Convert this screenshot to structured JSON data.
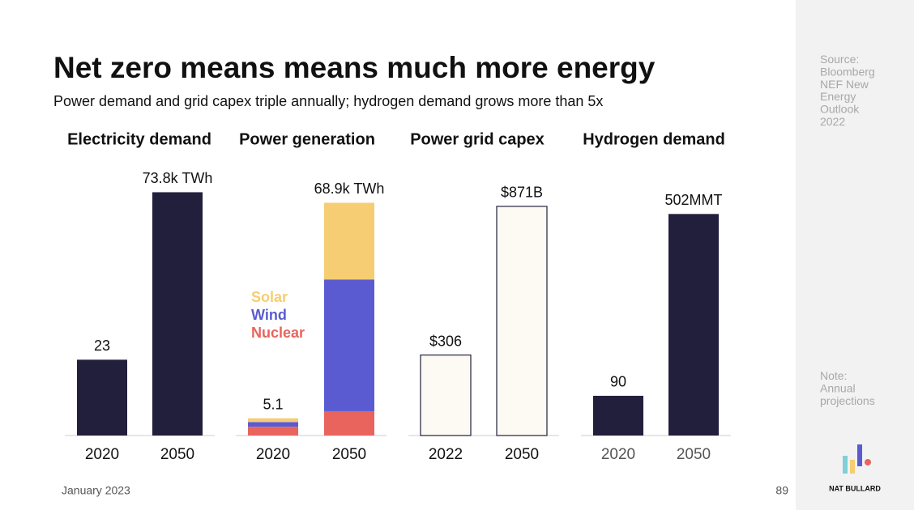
{
  "page": {
    "title": "Net zero means means much more energy",
    "subtitle": "Power demand and grid capex triple annually; hydrogen demand grows more than 5x",
    "source": "Source: Bloomberg NEF New Energy Outlook 2022",
    "note": "Note: Annual projections",
    "brand": "NAT BULLARD",
    "date": "January 2023",
    "page_number": "89"
  },
  "chart_data": [
    {
      "type": "bar",
      "title": "Electricity demand",
      "categories": [
        "2020",
        "2050"
      ],
      "values": [
        23,
        73.8
      ],
      "value_labels": [
        "23",
        "73.8k TWh"
      ],
      "color": "#221f3d",
      "ylim": [
        0,
        83
      ]
    },
    {
      "type": "stacked_bar",
      "title": "Power generation",
      "categories": [
        "2020",
        "2050"
      ],
      "series": [
        {
          "name": "Solar",
          "color": "#f6cd72",
          "values": [
            1.1,
            22.7
          ]
        },
        {
          "name": "Wind",
          "color": "#5a5bd1",
          "values": [
            1.4,
            39.0
          ]
        },
        {
          "name": "Nuclear",
          "color": "#e8645d",
          "values": [
            2.6,
            7.2
          ]
        }
      ],
      "totals": [
        5.1,
        68.9
      ],
      "total_labels": [
        "5.1",
        "68.9k TWh"
      ],
      "ylim": [
        0,
        81
      ]
    },
    {
      "type": "bar",
      "title": "Power grid capex",
      "categories": [
        "2022",
        "2050"
      ],
      "values": [
        306,
        871
      ],
      "value_labels": [
        "$306",
        "$871B"
      ],
      "color": "#fdfaf3",
      "stroke": "#221f3d",
      "ylim": [
        0,
        1040
      ]
    },
    {
      "type": "bar",
      "title": "Hydrogen demand",
      "categories": [
        "2020",
        "2050"
      ],
      "values": [
        90,
        502
      ],
      "value_labels": [
        "90",
        "502MMT"
      ],
      "color": "#221f3d",
      "ylim": [
        0,
        620
      ]
    }
  ]
}
